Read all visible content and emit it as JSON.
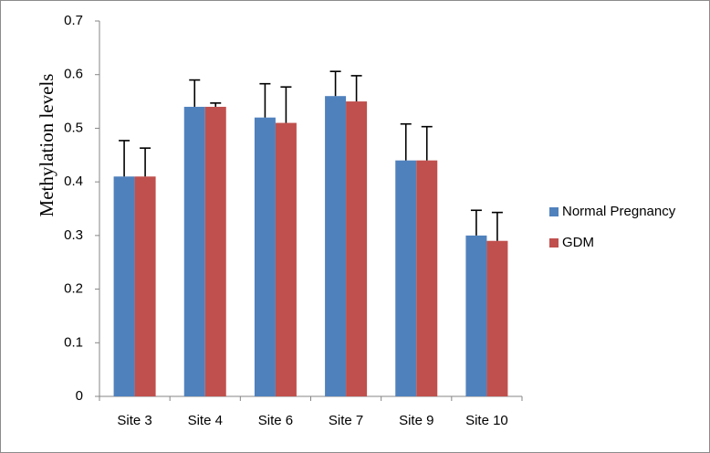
{
  "chart_data": {
    "type": "bar",
    "title": "",
    "xlabel": "",
    "ylabel": "Methylation levels",
    "ylim": [
      0,
      0.7
    ],
    "yticks": [
      "0",
      "0.1",
      "0.2",
      "0.3",
      "0.4",
      "0.5",
      "0.6",
      "0.7"
    ],
    "categories": [
      "Site 3",
      "Site 4",
      "Site 6",
      "Site 7",
      "Site 9",
      "Site 10"
    ],
    "series": [
      {
        "name": "Normal Pregnancy",
        "color": "#4f81bd",
        "values": [
          0.41,
          0.54,
          0.52,
          0.56,
          0.44,
          0.3
        ],
        "error": [
          0.067,
          0.05,
          0.063,
          0.046,
          0.068,
          0.047
        ]
      },
      {
        "name": "GDM",
        "color": "#c0504d",
        "values": [
          0.41,
          0.54,
          0.51,
          0.55,
          0.44,
          0.29
        ],
        "error": [
          0.053,
          0.007,
          0.067,
          0.048,
          0.063,
          0.053
        ]
      }
    ],
    "grid": false,
    "legend_position": "right"
  }
}
